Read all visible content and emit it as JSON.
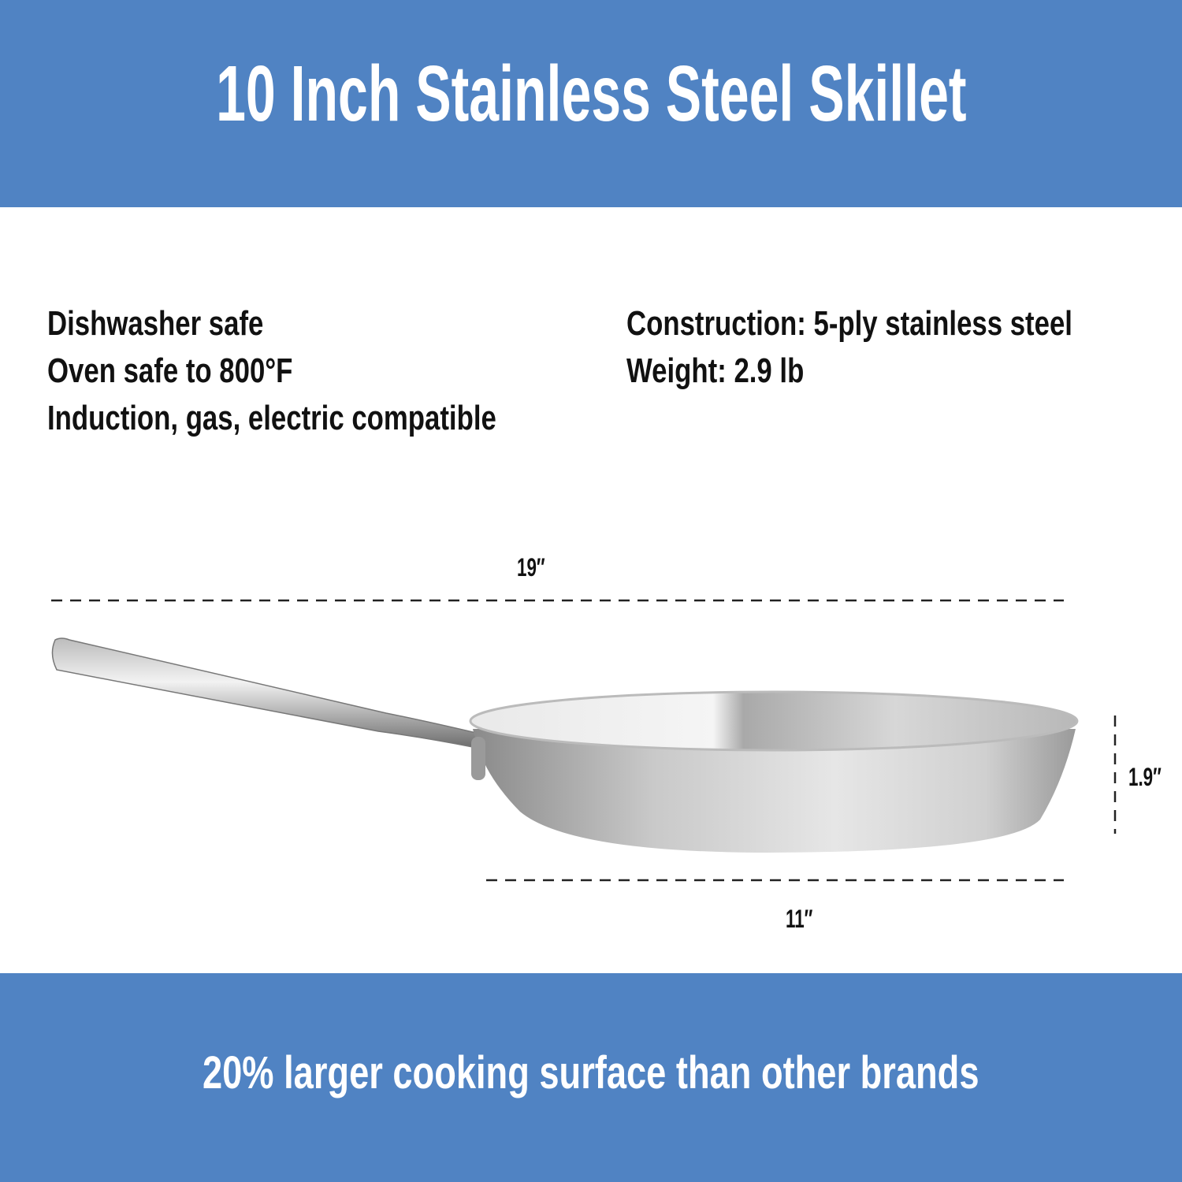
{
  "header": {
    "title": "10 Inch Stainless Steel Skillet",
    "background": "#5083C3"
  },
  "features_left": [
    "Dishwasher safe",
    "Oven safe to 800°F",
    "Induction, gas, electric compatible"
  ],
  "features_right": [
    "Construction: 5-ply stainless steel",
    "Weight: 2.9 lb"
  ],
  "dimensions": {
    "total_length": "19″",
    "diameter": "11″",
    "height": "1.9″"
  },
  "footer": {
    "text": "20% larger cooking surface than other brands"
  }
}
